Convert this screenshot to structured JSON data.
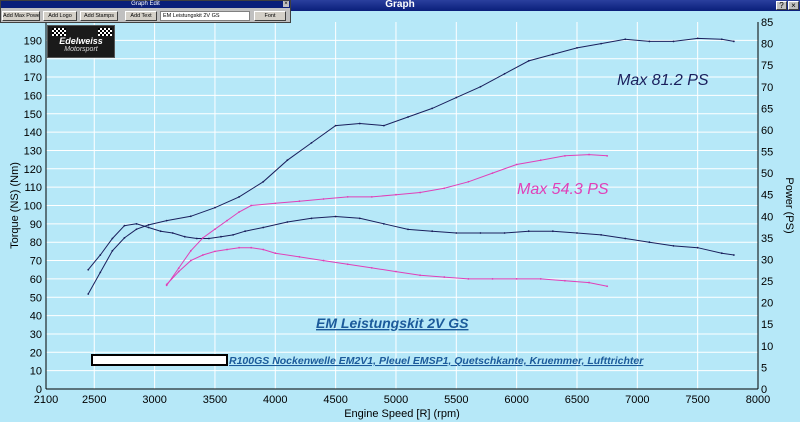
{
  "window": {
    "title": "Graph",
    "btn_help": "?",
    "btn_close": "×"
  },
  "edit_window": {
    "title": "Graph Edit",
    "buttons": [
      "Add Max Power",
      "Add Logo",
      "Add Stamps",
      "Add Text"
    ],
    "text_value": "EM Leistungskit 2V GS",
    "font_button": "Font",
    "close": "×"
  },
  "logo": {
    "line1": "Edelweiss",
    "line2": "Motorsport"
  },
  "annotations": {
    "max_blue": "Max 81.2 PS",
    "max_pink": "Max 54.3 PS",
    "title": "EM Leistungskit 2V GS",
    "subtitle": "R100GS Nockenwelle EM2V1, Pleuel EMSP1, Quetschkante, Kruemmer, Lufttrichter"
  },
  "colors": {
    "bg": "#b6e8f8",
    "grid": "#ffffff",
    "blue": "#1a1f5c",
    "pink": "#e040b8",
    "annotation_blue": "#1a1f5c",
    "annotation_pink": "#e040b8",
    "title_blue": "#1b5a9a"
  },
  "chart_data": {
    "type": "line",
    "xlabel": "Engine Speed [R] (rpm)",
    "ylabel": "Torque (NS) (Nm)",
    "y2label": "Power (PS)",
    "xlim": [
      2100,
      8000
    ],
    "ylim": [
      0,
      200
    ],
    "y2lim": [
      0,
      85
    ],
    "xticks": [
      2100,
      2500,
      3000,
      3500,
      4000,
      4500,
      5000,
      5500,
      6000,
      6500,
      7000,
      7500,
      8000
    ],
    "yticks": [
      0,
      10,
      20,
      30,
      40,
      50,
      60,
      70,
      80,
      90,
      100,
      110,
      120,
      130,
      140,
      150,
      160,
      170,
      180,
      190
    ],
    "y2ticks": [
      0,
      5,
      10,
      15,
      20,
      25,
      30,
      35,
      40,
      45,
      50,
      55,
      60,
      65,
      70,
      75,
      80,
      85
    ],
    "grid": true,
    "series": [
      {
        "axis": "y",
        "color": "#1a1f5c",
        "x": [
          2450,
          2550,
          2650,
          2750,
          2850,
          2950,
          3050,
          3150,
          3250,
          3350,
          3450,
          3550,
          3650,
          3750,
          3900,
          4100,
          4300,
          4500,
          4700,
          4900,
          5100,
          5300,
          5500,
          5700,
          5900,
          6100,
          6300,
          6500,
          6700,
          6900,
          7100,
          7300,
          7500,
          7700,
          7800
        ],
        "y": [
          65,
          73,
          82,
          89,
          90,
          88,
          86,
          85,
          83,
          82,
          82,
          83,
          84,
          86,
          88,
          91,
          93,
          94,
          93,
          90,
          87,
          86,
          85,
          85,
          85,
          86,
          86,
          85,
          84,
          82,
          80,
          78,
          77,
          74,
          73
        ]
      },
      {
        "axis": "y2",
        "color": "#1a1f5c",
        "x": [
          2450,
          2550,
          2650,
          2750,
          2850,
          2950,
          3100,
          3300,
          3500,
          3700,
          3900,
          4100,
          4300,
          4500,
          4700,
          4900,
          5100,
          5300,
          5500,
          5700,
          5900,
          6100,
          6300,
          6500,
          6700,
          6900,
          7100,
          7300,
          7500,
          7700,
          7800
        ],
        "y": [
          22,
          27,
          32,
          35,
          37,
          38,
          39,
          40,
          42,
          44.5,
          48,
          53,
          57,
          61,
          61.5,
          61,
          63,
          65,
          67.5,
          70,
          73,
          76,
          77.5,
          79,
          80,
          81,
          80.5,
          80.5,
          81.2,
          81,
          80.5
        ]
      },
      {
        "axis": "y",
        "color": "#e040b8",
        "x": [
          3100,
          3200,
          3300,
          3400,
          3500,
          3600,
          3700,
          3800,
          3900,
          4000,
          4200,
          4400,
          4600,
          4800,
          5000,
          5200,
          5400,
          5600,
          5800,
          6000,
          6200,
          6400,
          6600,
          6750
        ],
        "y": [
          57,
          64,
          70,
          73,
          75,
          76,
          77,
          77,
          76,
          74,
          72,
          70,
          68,
          66,
          64,
          62,
          61,
          60,
          60,
          60,
          60,
          59,
          58,
          56
        ]
      },
      {
        "axis": "y2",
        "color": "#e040b8",
        "x": [
          3100,
          3200,
          3300,
          3400,
          3500,
          3600,
          3700,
          3800,
          4000,
          4200,
          4400,
          4600,
          4800,
          5000,
          5200,
          5400,
          5600,
          5800,
          6000,
          6200,
          6400,
          6600,
          6750
        ],
        "y": [
          24,
          28,
          32,
          35,
          37,
          39,
          41,
          42.5,
          43,
          43.5,
          44,
          44.5,
          44.5,
          45,
          45.5,
          46.5,
          48,
          50,
          52,
          53,
          54,
          54.3,
          54
        ]
      }
    ]
  }
}
